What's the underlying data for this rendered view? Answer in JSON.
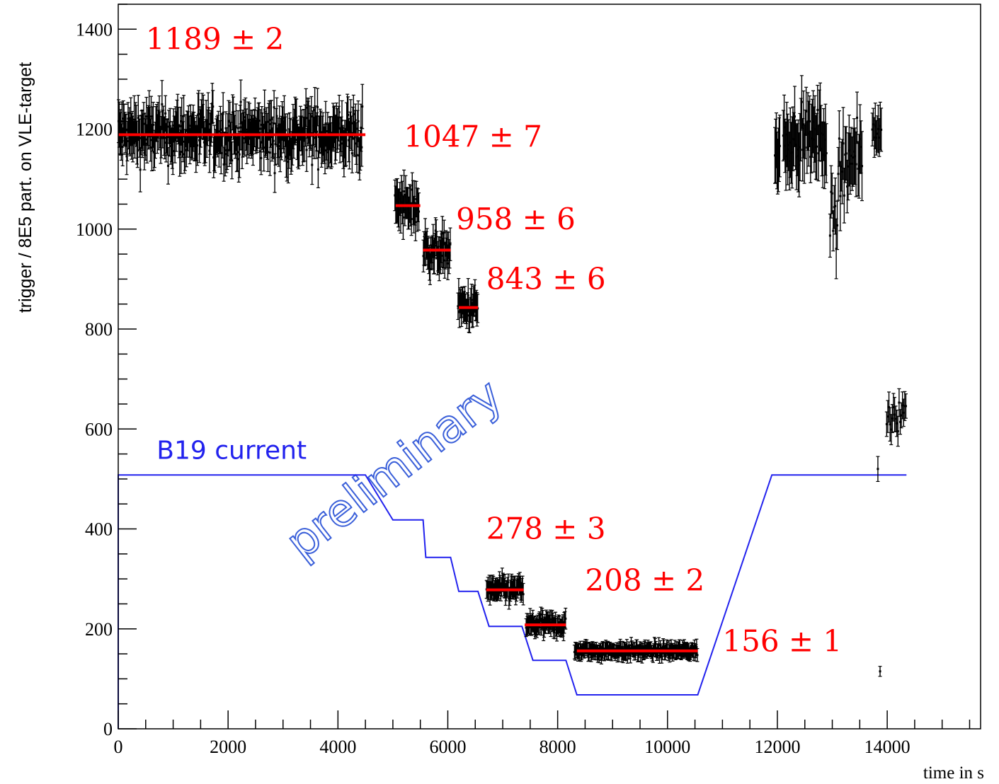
{
  "chart_data": {
    "type": "scatter",
    "title": "",
    "xlabel": "time in s",
    "ylabel": "trigger / 8E5 part. on VLE-target",
    "xlim": [
      0,
      15700
    ],
    "ylim": [
      0,
      1450
    ],
    "xticks": [
      0,
      2000,
      4000,
      6000,
      8000,
      10000,
      12000,
      14000
    ],
    "xtick_labels": [
      "0",
      "2000",
      "4000",
      "6000",
      "8000",
      "10000",
      "12000",
      "14000"
    ],
    "yticks": [
      0,
      200,
      400,
      600,
      800,
      1000,
      1200,
      1400
    ],
    "ytick_labels": [
      "0",
      "200",
      "400",
      "600",
      "800",
      "1000",
      "1200",
      "1400"
    ],
    "grid": false,
    "watermark": "preliminary",
    "colors": {
      "data": "#000000",
      "fit": "#ff0000",
      "current": "#2222ee",
      "watermark": "#3a5fd9"
    },
    "data_segments": [
      {
        "x_range": [
          0,
          4450
        ],
        "mean": 1189,
        "spread": 45,
        "err": 40,
        "count": 360
      },
      {
        "x_range": [
          5030,
          5480
        ],
        "mean": 1047,
        "spread": 30,
        "err": 38,
        "count": 30
      },
      {
        "x_range": [
          5550,
          6050
        ],
        "mean": 958,
        "spread": 28,
        "err": 30,
        "count": 45
      },
      {
        "x_range": [
          6180,
          6550
        ],
        "mean": 843,
        "spread": 22,
        "err": 30,
        "count": 30
      },
      {
        "x_range": [
          6700,
          7380
        ],
        "mean": 278,
        "spread": 15,
        "err": 20,
        "count": 55
      },
      {
        "x_range": [
          7420,
          8150
        ],
        "mean": 208,
        "spread": 13,
        "err": 18,
        "count": 60
      },
      {
        "x_range": [
          8300,
          10550
        ],
        "mean": 156,
        "spread": 8,
        "err": 15,
        "count": 170
      },
      {
        "x_range": [
          11950,
          12050
        ],
        "mean": 1150,
        "spread": 40,
        "err": 60,
        "count": 8
      },
      {
        "x_range": [
          12100,
          12900
        ],
        "mean": 1185,
        "spread": 40,
        "err": 60,
        "count": 50
      },
      {
        "x_range": [
          12950,
          13100
        ],
        "mean": 1000,
        "spread": 60,
        "err": 50,
        "count": 8
      },
      {
        "x_range": [
          13100,
          13550
        ],
        "mean": 1140,
        "spread": 50,
        "err": 60,
        "count": 25
      },
      {
        "x_range": [
          13720,
          13900
        ],
        "mean": 1195,
        "spread": 25,
        "err": 40,
        "count": 10
      },
      {
        "x_range": [
          13980,
          14350
        ],
        "mean": 630,
        "spread": 25,
        "err": 30,
        "count": 18
      }
    ],
    "extra_points": [
      {
        "x": 13830,
        "y": 520,
        "err": 25
      },
      {
        "x": 13870,
        "y": 115,
        "err": 10
      }
    ],
    "fit_lines": [
      {
        "x_range": [
          0,
          4500
        ],
        "value": 1189,
        "label": "1189 ± 2",
        "label_pos": [
          500,
          1360
        ]
      },
      {
        "x_range": [
          5050,
          5500
        ],
        "value": 1047,
        "label": "1047 ± 7",
        "label_pos": [
          5200,
          1165
        ]
      },
      {
        "x_range": [
          5550,
          6050
        ],
        "value": 958,
        "label": "958 ± 6",
        "label_pos": [
          6150,
          1000
        ]
      },
      {
        "x_range": [
          6200,
          6550
        ],
        "value": 843,
        "label": "843 ± 6",
        "label_pos": [
          6700,
          880
        ]
      },
      {
        "x_range": [
          6700,
          7380
        ],
        "value": 278,
        "label": "278 ± 3",
        "label_pos": [
          6700,
          380
        ]
      },
      {
        "x_range": [
          7400,
          8150
        ],
        "value": 208,
        "label": "208 ± 2",
        "label_pos": [
          8500,
          277
        ]
      },
      {
        "x_range": [
          8350,
          10550
        ],
        "value": 156,
        "label": "156 ± 1",
        "label_pos": [
          11000,
          155
        ]
      }
    ],
    "current_curve": {
      "name": "B19 current",
      "label_pos": [
        700,
        540
      ],
      "points": [
        [
          0,
          0
        ],
        [
          0,
          508
        ],
        [
          4500,
          508
        ],
        [
          5000,
          418
        ],
        [
          5550,
          418
        ],
        [
          5600,
          343
        ],
        [
          6050,
          343
        ],
        [
          6200,
          275
        ],
        [
          6550,
          275
        ],
        [
          6750,
          205
        ],
        [
          7350,
          205
        ],
        [
          7550,
          137
        ],
        [
          8150,
          137
        ],
        [
          8350,
          68
        ],
        [
          10550,
          68
        ],
        [
          11900,
          508
        ],
        [
          14350,
          508
        ]
      ]
    }
  }
}
